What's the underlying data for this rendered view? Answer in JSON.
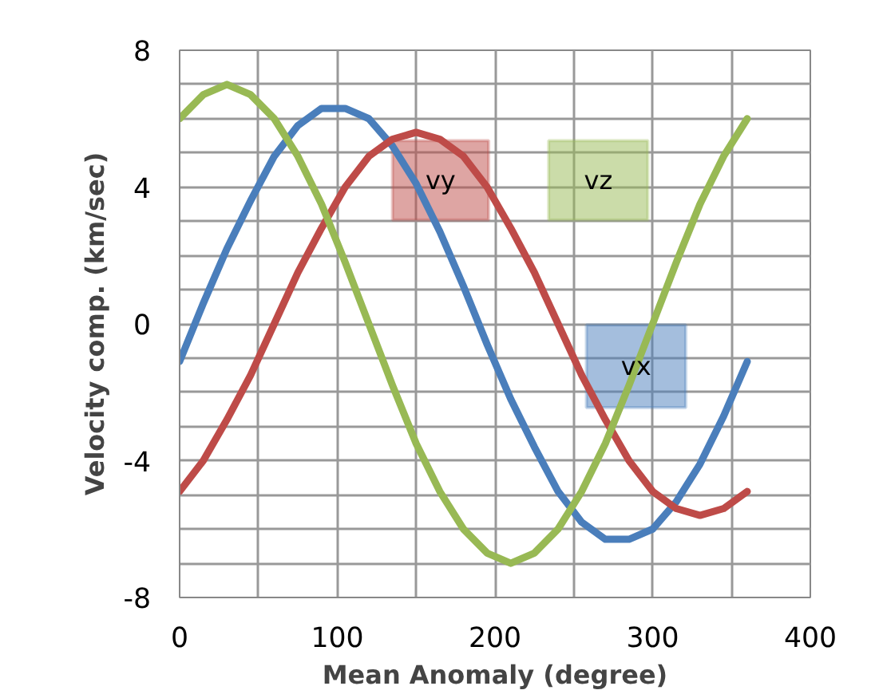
{
  "chart_data": {
    "type": "line",
    "xlabel": "Mean Anomaly (degree)",
    "ylabel": "Velocity comp. (km/sec)",
    "x": [
      0,
      15,
      30,
      45,
      60,
      75,
      90,
      105,
      120,
      135,
      150,
      165,
      180,
      195,
      210,
      225,
      240,
      255,
      270,
      285,
      300,
      315,
      330,
      345,
      360
    ],
    "series": [
      {
        "name": "vx",
        "color": "#4a7ebb",
        "values": [
          -1.1,
          0.6,
          2.2,
          3.6,
          4.9,
          5.8,
          6.3,
          6.3,
          6.0,
          5.2,
          4.1,
          2.7,
          1.1,
          -0.6,
          -2.2,
          -3.6,
          -4.9,
          -5.8,
          -6.3,
          -6.3,
          -6.0,
          -5.2,
          -4.1,
          -2.7,
          -1.1
        ]
      },
      {
        "name": "vy",
        "color": "#be4b48",
        "values": [
          -4.9,
          -4.0,
          -2.8,
          -1.5,
          0.0,
          1.5,
          2.8,
          4.0,
          4.9,
          5.4,
          5.6,
          5.4,
          4.9,
          4.0,
          2.8,
          1.5,
          0.0,
          -1.5,
          -2.8,
          -4.0,
          -4.9,
          -5.4,
          -5.6,
          -5.4,
          -4.9
        ]
      },
      {
        "name": "vz",
        "color": "#98b954",
        "values": [
          6.0,
          6.7,
          7.0,
          6.7,
          6.0,
          4.9,
          3.5,
          1.8,
          0.0,
          -1.8,
          -3.5,
          -4.9,
          -6.0,
          -6.7,
          -7.0,
          -6.7,
          -6.0,
          -4.9,
          -3.5,
          -1.8,
          0.0,
          1.8,
          3.5,
          4.9,
          6.0
        ]
      }
    ],
    "xlim": [
      0,
      400
    ],
    "ylim": [
      -8,
      8
    ],
    "xticks": [
      0,
      {
        "value": 50,
        "label": null
      },
      100,
      {
        "value": 150,
        "label": null
      },
      200,
      {
        "value": 250,
        "label": null
      },
      300,
      {
        "value": 350,
        "label": null
      },
      400
    ],
    "yticks": [
      -8,
      {
        "value": -7,
        "label": null
      },
      {
        "value": -6,
        "label": null
      },
      {
        "value": -5,
        "label": null
      },
      -4,
      {
        "value": -3,
        "label": null
      },
      {
        "value": -2,
        "label": null
      },
      {
        "value": -1,
        "label": null
      },
      0,
      {
        "value": 1,
        "label": null
      },
      {
        "value": 2,
        "label": null
      },
      {
        "value": 3,
        "label": null
      },
      4,
      {
        "value": 5,
        "label": null
      },
      {
        "value": 6,
        "label": null
      },
      {
        "value": 7,
        "label": null
      },
      8
    ],
    "grid": true,
    "marker": "none",
    "line_style": "solid"
  }
}
